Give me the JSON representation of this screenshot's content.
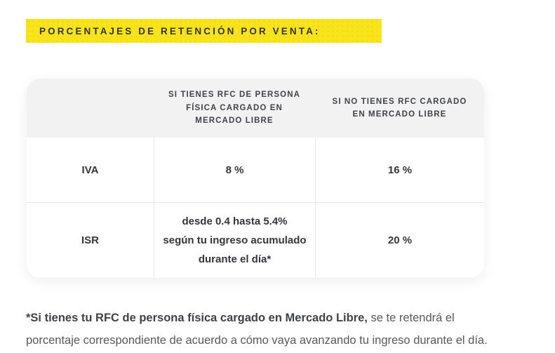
{
  "heading": {
    "label": "PORCENTAJES DE RETENCIÓN POR VENTA:",
    "background": "#F9E41B",
    "text_color": "#32353C"
  },
  "table": {
    "header_background": "#F2F2F2",
    "border_color": "#E9E9E9",
    "columns": [
      {
        "label": ""
      },
      {
        "label": "SI TIENES RFC DE PERSONA\nFÍSICA CARGADO EN\nMERCADO LIBRE"
      },
      {
        "label": "SI NO TIENES RFC CARGADO\nEN MERCADO LIBRE"
      }
    ],
    "rows": [
      {
        "tax": "IVA",
        "with_rfc": "8 %",
        "without_rfc": "16 %"
      },
      {
        "tax": "ISR",
        "with_rfc": "desde 0.4 hasta 5.4%\nsegún tu ingreso acumulado\ndurante el día*",
        "without_rfc": "20 %"
      }
    ]
  },
  "footnote": {
    "bold": "*Si tienes tu RFC de persona física cargado en Mercado Libre,",
    "regular": " se te retendrá el porcentaje correspondiente de acuerdo a cómo vaya avanzando tu ingreso durante el día."
  }
}
